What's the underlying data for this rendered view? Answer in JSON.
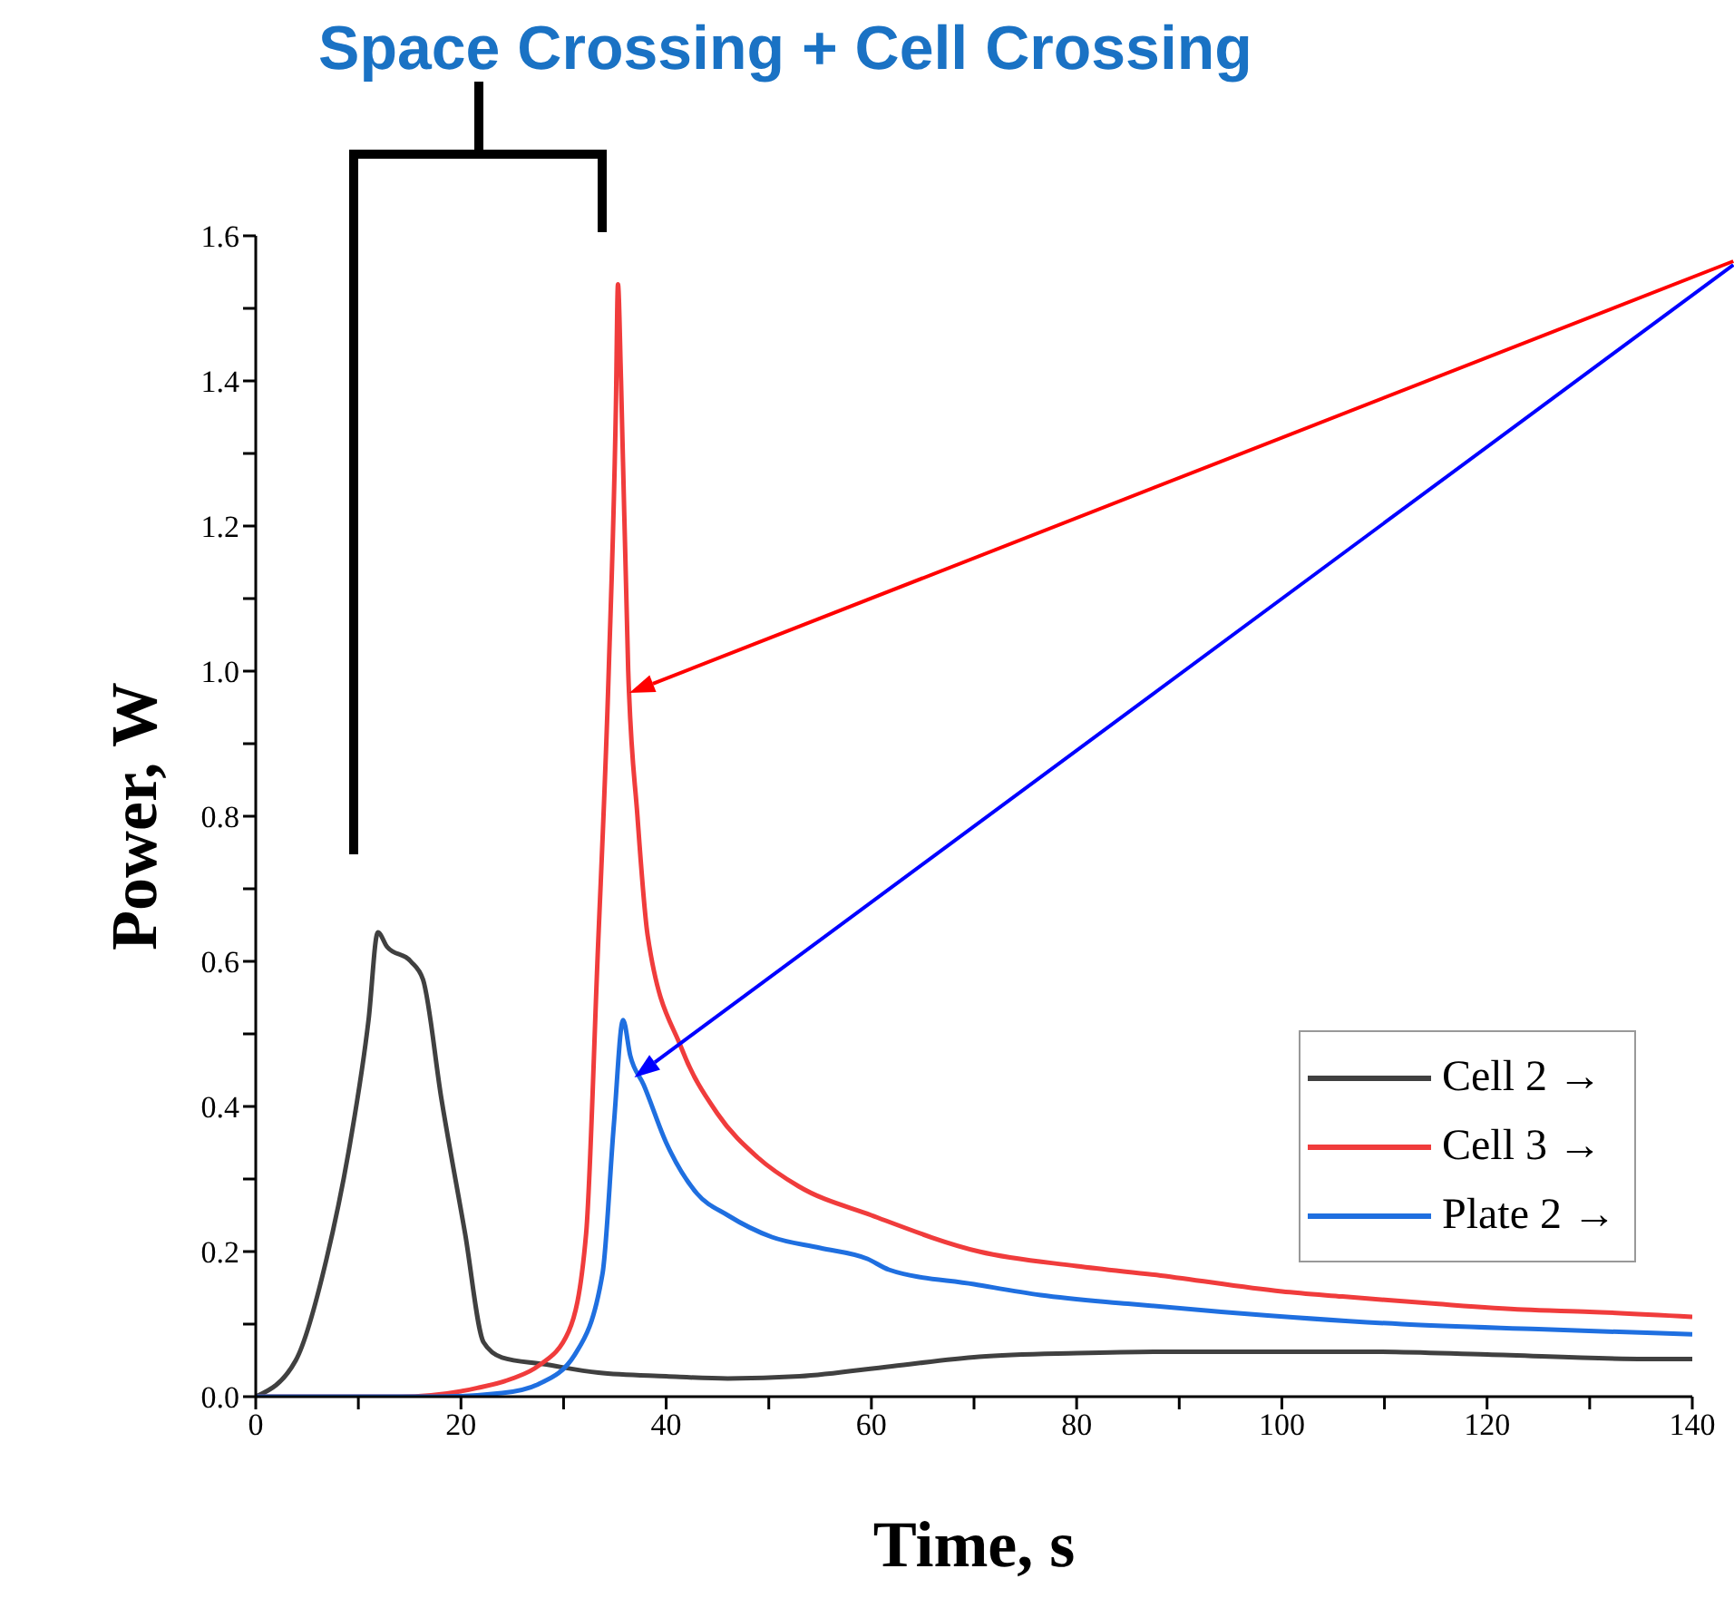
{
  "chart_data": {
    "type": "line",
    "title": "Space Crossing + Cell Crossing",
    "xlabel": "Time, s",
    "ylabel": "Power, W",
    "xlim": [
      0,
      140
    ],
    "ylim": [
      0,
      1.6
    ],
    "xticks": [
      0,
      {
        "value": 10,
        "label": null
      },
      20,
      {
        "value": 30,
        "label": null
      },
      40,
      {
        "value": 50,
        "label": null
      },
      60,
      {
        "value": 70,
        "label": null
      },
      80,
      {
        "value": 90,
        "label": null
      },
      100,
      {
        "value": 110,
        "label": null
      },
      120,
      {
        "value": 130,
        "label": null
      },
      140
    ],
    "yticks": [
      {
        "value": 0,
        "label": "0.0"
      },
      {
        "value": 0.1,
        "label": null
      },
      {
        "value": 0.2,
        "label": "0.2"
      },
      {
        "value": 0.3,
        "label": null
      },
      {
        "value": 0.4,
        "label": "0.4"
      },
      {
        "value": 0.5,
        "label": null
      },
      {
        "value": 0.6,
        "label": "0.6"
      },
      {
        "value": 0.7,
        "label": null
      },
      {
        "value": 0.8,
        "label": "0.8"
      },
      {
        "value": 0.9,
        "label": null
      },
      {
        "value": 1,
        "label": "1.0"
      },
      {
        "value": 1.1,
        "label": null
      },
      {
        "value": 1.2,
        "label": "1.2"
      },
      {
        "value": 1.3,
        "label": null
      },
      {
        "value": 1.4,
        "label": "1.4"
      },
      {
        "value": 1.5,
        "label": null
      },
      {
        "value": 1.6,
        "label": "1.6"
      }
    ],
    "grid": false,
    "legend": "bottom right",
    "marker": "none",
    "line_style": "solid",
    "series": [
      {
        "name": "Cell 2 →",
        "color": "#404040",
        "x": [
          0,
          3.9,
          6.9,
          9.2,
          11,
          11.9,
          12.8,
          15.1,
          16.3,
          18.1,
          20.4,
          22.2,
          24,
          28,
          33.4,
          40,
          46,
          53,
          62,
          70.5,
          80,
          88.2,
          100,
          109,
          120,
          135.4,
          140
        ],
        "values": [
          0,
          0.05,
          0.19,
          0.35,
          0.52,
          0.64,
          0.62,
          0.6,
          0.575,
          0.41,
          0.225,
          0.075,
          0.054,
          0.045,
          0.033,
          0.028,
          0.025,
          0.028,
          0.042,
          0.055,
          0.06,
          0.062,
          0.062,
          0.062,
          0.058,
          0.052,
          0.052
        ]
      },
      {
        "name": "Cell 3 →",
        "color": "#f03c3c",
        "x": [
          0,
          14,
          21.6,
          25,
          27.5,
          30.5,
          32.2,
          33.3,
          34.4,
          35.1,
          35.3,
          35.6,
          36.3,
          37.2,
          38.2,
          41.5,
          45,
          48.9,
          52.9,
          60,
          70.5,
          80,
          88.2,
          100,
          105.9,
          115,
          123.6,
          130,
          140
        ],
        "values": [
          0,
          0,
          0.012,
          0.025,
          0.042,
          0.09,
          0.225,
          0.6,
          1.0,
          1.365,
          1.533,
          1.4,
          1.0,
          0.8,
          0.635,
          0.48,
          0.39,
          0.33,
          0.29,
          0.25,
          0.2,
          0.18,
          0.167,
          0.145,
          0.138,
          0.128,
          0.12,
          0.117,
          0.11
        ]
      },
      {
        "name": "Plate 2 →",
        "color": "#1f6fe0",
        "x": [
          0,
          17.5,
          24,
          27.5,
          31.1,
          33.8,
          34.9,
          35.8,
          36.5,
          37.8,
          40,
          43,
          46,
          50.3,
          55,
          59.6,
          61.7,
          70,
          76.5,
          85,
          94.1,
          111.7,
          125,
          140
        ],
        "values": [
          0,
          0,
          0.005,
          0.017,
          0.058,
          0.17,
          0.375,
          0.519,
          0.47,
          0.43,
          0.35,
          0.28,
          0.25,
          0.22,
          0.205,
          0.19,
          0.175,
          0.155,
          0.14,
          0.128,
          0.117,
          0.1,
          0.093,
          0.086
        ]
      }
    ]
  }
}
